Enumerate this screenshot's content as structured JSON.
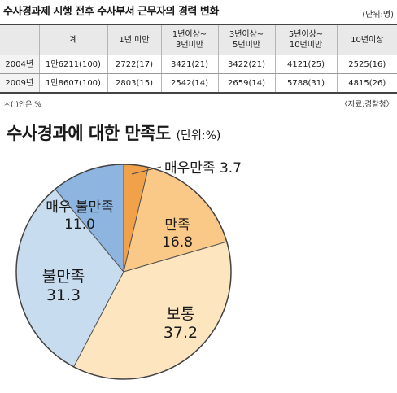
{
  "table": {
    "title": "수사경과제 시행 전후 수사부서 근무자의 경력 변화",
    "unit": "(단위:명)",
    "columns": [
      "",
      "계",
      "1년 미만",
      "1년이상~\n3년미만",
      "3년이상~\n5년미만",
      "5년이상~\n10년미만",
      "10년이상"
    ],
    "rows": [
      [
        "2004년",
        "1만6211(100)",
        "2722(17)",
        "3421(21)",
        "3422(21)",
        "4121(25)",
        "2525(16)"
      ],
      [
        "2009년",
        "1만8607(100)",
        "2803(15)",
        "2542(14)",
        "2659(14)",
        "5788(31)",
        "4815(26)"
      ]
    ],
    "note": "＊( )안은 %",
    "source": "〈자료:경찰청〉"
  },
  "chart_title": "수사경과에 대한 만족도",
  "chart_unit": "(단위:%)",
  "chart_data": {
    "type": "pie",
    "title": "수사경과에 대한 만족도",
    "unit": "%",
    "slices": [
      {
        "label": "매우만족",
        "value": 3.7,
        "color": "#f2a14b"
      },
      {
        "label": "만족",
        "value": 16.8,
        "color": "#fbc987"
      },
      {
        "label": "보통",
        "value": 37.2,
        "color": "#fde5bf"
      },
      {
        "label": "불만족",
        "value": 31.3,
        "color": "#c8dcf0"
      },
      {
        "label": "매우 불만족",
        "value": 11.0,
        "color": "#8db5df"
      }
    ]
  }
}
